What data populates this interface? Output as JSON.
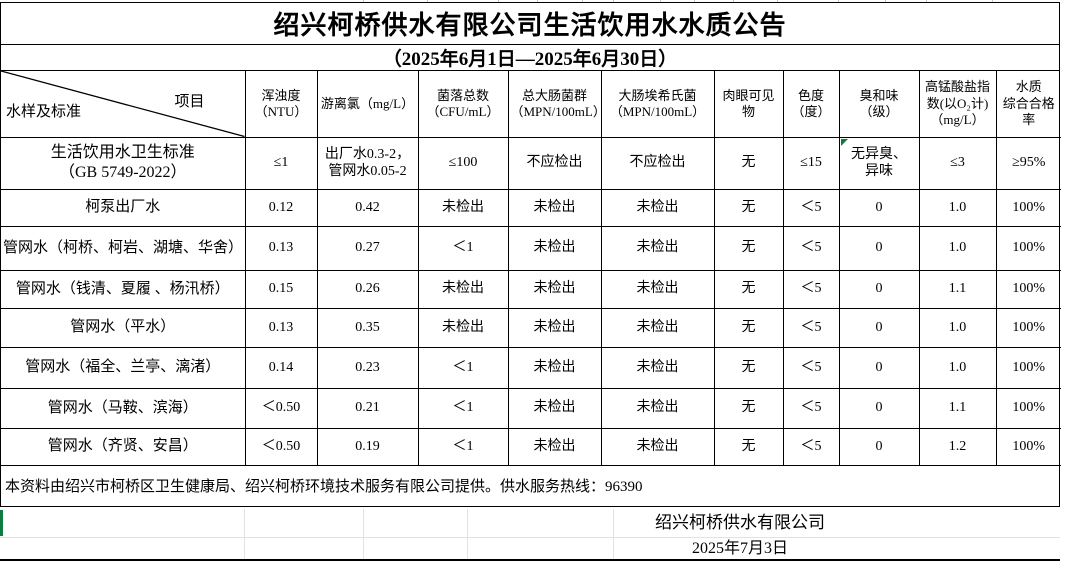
{
  "title": "绍兴柯桥供水有限公司生活饮用水水质公告",
  "subtitle": "（2025年6月1日—2025年6月30日）",
  "table": {
    "corner": {
      "bottom_left": "水样及标准",
      "top_right": "项目"
    },
    "columns": [
      "浑浊度\n（NTU）",
      "游离氯（mg/L）",
      "菌落总数\n（CFU/mL）",
      "总大肠菌群\n（MPN/100mL）",
      "大肠埃希氏菌\n（MPN/100mL）",
      "肉眼可见物",
      "色度\n（度）",
      "臭和味\n（级）",
      "高锰酸盐指数(以O₂计)\n（mg/L）",
      "水质\n综合合格率"
    ],
    "rows": [
      {
        "label": "生活饮用水卫生标准\n（GB 5749-2022）",
        "values": [
          "≤1",
          "出厂水0.3-2，\n管网水0.05-2",
          "≤100",
          "不应检出",
          "不应检出",
          "无",
          "≤15",
          "无异臭、\n异味",
          "≤3",
          "≥95%"
        ]
      },
      {
        "label": "柯泵出厂水",
        "values": [
          "0.12",
          "0.42",
          "未检出",
          "未检出",
          "未检出",
          "无",
          "＜5",
          "0",
          "1.0",
          "100%"
        ]
      },
      {
        "label": "管网水（柯桥、柯岩、湖塘、华舍）",
        "values": [
          "0.13",
          "0.27",
          "＜1",
          "未检出",
          "未检出",
          "无",
          "＜5",
          "0",
          "1.0",
          "100%"
        ]
      },
      {
        "label": "管网水（钱清、夏履 、杨汛桥）",
        "values": [
          "0.15",
          "0.26",
          "未检出",
          "未检出",
          "未检出",
          "无",
          "＜5",
          "0",
          "1.1",
          "100%"
        ]
      },
      {
        "label": "管网水（平水）",
        "values": [
          "0.13",
          "0.35",
          "未检出",
          "未检出",
          "未检出",
          "无",
          "＜5",
          "0",
          "1.0",
          "100%"
        ]
      },
      {
        "label": "管网水（福全、兰亭、漓渚）",
        "values": [
          "0.14",
          "0.23",
          "＜1",
          "未检出",
          "未检出",
          "无",
          "＜5",
          "0",
          "1.0",
          "100%"
        ]
      },
      {
        "label": "管网水（马鞍、滨海）",
        "values": [
          "＜0.50",
          "0.21",
          "＜1",
          "未检出",
          "未检出",
          "无",
          "＜5",
          "0",
          "1.1",
          "100%"
        ]
      },
      {
        "label": "管网水（齐贤、安昌）",
        "values": [
          "＜0.50",
          "0.19",
          "＜1",
          "未检出",
          "未检出",
          "无",
          "＜5",
          "0",
          "1.2",
          "100%"
        ]
      }
    ]
  },
  "footer": {
    "note": "本资料由绍兴市柯桥区卫生健康局、绍兴柯桥环境技术服务有限公司提供。供水服务热线：96390",
    "company": "绍兴柯桥供水有限公司",
    "date": "2025年7月3日"
  },
  "colors": {
    "marker_green": "#107C41"
  }
}
